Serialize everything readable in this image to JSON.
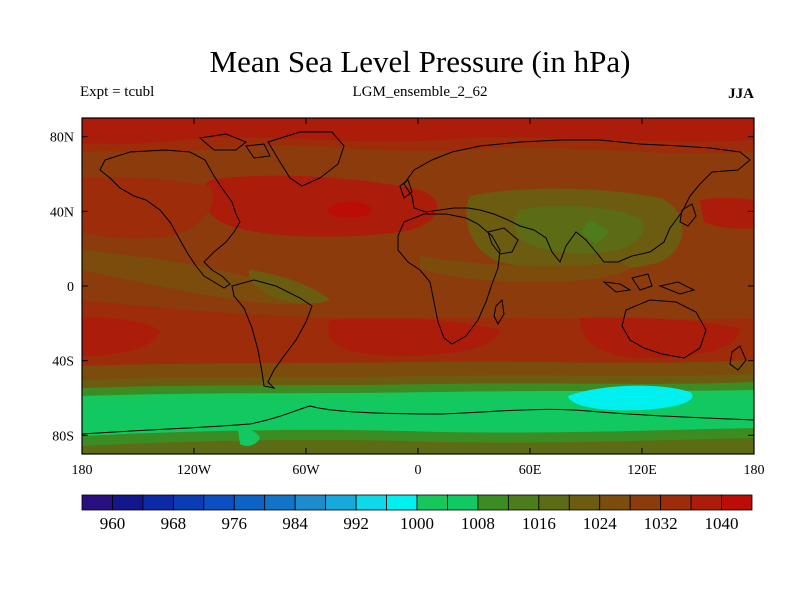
{
  "map": {
    "title": "Mean Sea Level Pressure (in hPa)",
    "left_label": "Expt = tcubl",
    "center_label": "LGM_ensemble_2_62",
    "right_label": "JJA",
    "variable": "mean sea level pressure",
    "units": "hPa",
    "lon_range": [
      -180,
      180
    ],
    "lat_range": [
      -90,
      90
    ],
    "lat_ticks": [
      {
        "value": 80,
        "label": "80N"
      },
      {
        "value": 40,
        "label": "40N"
      },
      {
        "value": 0,
        "label": "0"
      },
      {
        "value": -40,
        "label": "40S"
      },
      {
        "value": -80,
        "label": "80S"
      }
    ],
    "lon_ticks": [
      {
        "value": -180,
        "label": "180"
      },
      {
        "value": -120,
        "label": "120W"
      },
      {
        "value": -60,
        "label": "60W"
      },
      {
        "value": 0,
        "label": "0"
      },
      {
        "value": 60,
        "label": "60E"
      },
      {
        "value": 120,
        "label": "120E"
      },
      {
        "value": 180,
        "label": "180"
      }
    ],
    "colorbar": {
      "levels": [
        "956",
        "960",
        "964",
        "968",
        "972",
        "976",
        "980",
        "984",
        "988",
        "992",
        "996",
        "1000",
        "1004",
        "1008",
        "1012",
        "1016",
        "1020",
        "1024",
        "1028",
        "1032",
        "1036",
        "1040",
        "1044"
      ],
      "colors": [
        "#2a0f80",
        "#14168c",
        "#0c2aa8",
        "#0a3cb6",
        "#0b4fc2",
        "#0d62c6",
        "#1274c8",
        "#1c8ccc",
        "#17a9dc",
        "#0fd8e8",
        "#00f0f0",
        "#16c85c",
        "#12c860",
        "#3c8c24",
        "#4c7c1c",
        "#5c6c14",
        "#6c5c10",
        "#7c4c0c",
        "#8c3c0c",
        "#9c2c0a",
        "#ac1c0a",
        "#bc0c08"
      ],
      "labels": [
        "960",
        "968",
        "976",
        "984",
        "992",
        "1000",
        "1008",
        "1016",
        "1024",
        "1032",
        "1040"
      ]
    }
  }
}
